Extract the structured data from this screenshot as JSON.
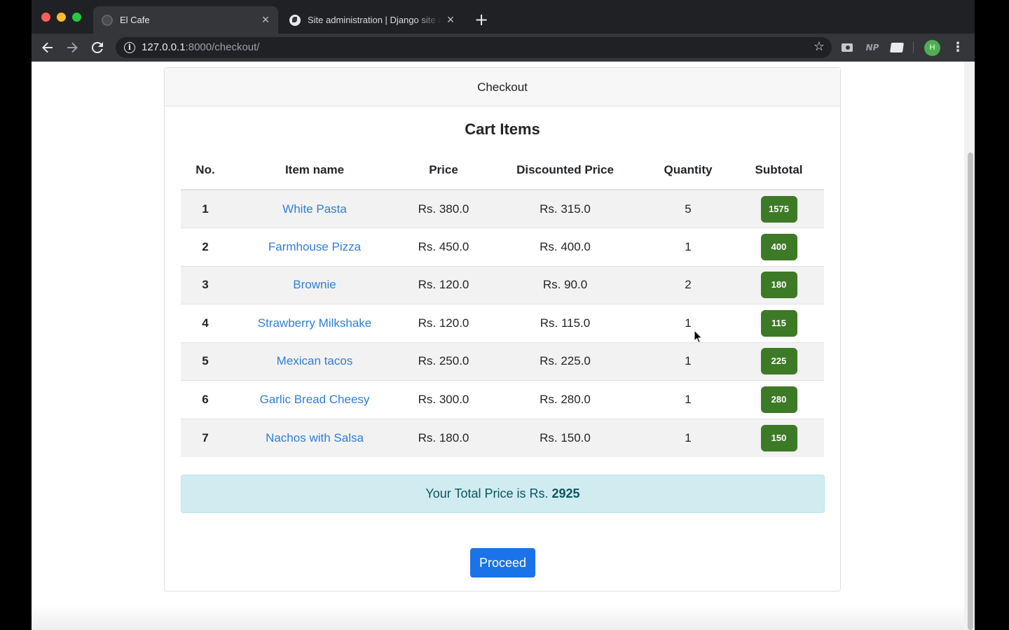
{
  "browser": {
    "tabs": [
      {
        "title": "El Cafe",
        "active": true
      },
      {
        "title": "Site administration | Django site admin",
        "active": false
      }
    ],
    "url_host": "127.0.0.1",
    "url_rest": ":8000/checkout/",
    "profile_initial": "H",
    "extension_np_label": "NP",
    "icons": {
      "back": "back-arrow-icon",
      "forward": "forward-arrow-icon",
      "reload": "reload-icon",
      "info": "site-info-icon",
      "bookmark": "star-icon",
      "menu": "kebab-menu-icon"
    }
  },
  "page": {
    "card_header": "Checkout",
    "title": "Cart Items",
    "columns": [
      "No.",
      "Item name",
      "Price",
      "Discounted Price",
      "Quantity",
      "Subtotal"
    ],
    "rows": [
      {
        "no": "1",
        "name": "White Pasta",
        "price": "Rs. 380.0",
        "discounted": "Rs. 315.0",
        "qty": "5",
        "subtotal": "1575"
      },
      {
        "no": "2",
        "name": "Farmhouse Pizza",
        "price": "Rs. 450.0",
        "discounted": "Rs. 400.0",
        "qty": "1",
        "subtotal": "400"
      },
      {
        "no": "3",
        "name": "Brownie",
        "price": "Rs. 120.0",
        "discounted": "Rs. 90.0",
        "qty": "2",
        "subtotal": "180"
      },
      {
        "no": "4",
        "name": "Strawberry Milkshake",
        "price": "Rs. 120.0",
        "discounted": "Rs. 115.0",
        "qty": "1",
        "subtotal": "115"
      },
      {
        "no": "5",
        "name": "Mexican tacos",
        "price": "Rs. 250.0",
        "discounted": "Rs. 225.0",
        "qty": "1",
        "subtotal": "225"
      },
      {
        "no": "6",
        "name": "Garlic Bread Cheesy",
        "price": "Rs. 300.0",
        "discounted": "Rs. 280.0",
        "qty": "1",
        "subtotal": "280"
      },
      {
        "no": "7",
        "name": "Nachos with Salsa",
        "price": "Rs. 180.0",
        "discounted": "Rs. 150.0",
        "qty": "1",
        "subtotal": "150"
      }
    ],
    "total_label": "Your Total Price is Rs.",
    "total_value": "2925",
    "proceed_label": "Proceed"
  },
  "colors": {
    "badge": "#3d7a26",
    "link": "#2f7fd4",
    "primary_button": "#1a73e8",
    "alert_bg": "#d1ecf1"
  }
}
